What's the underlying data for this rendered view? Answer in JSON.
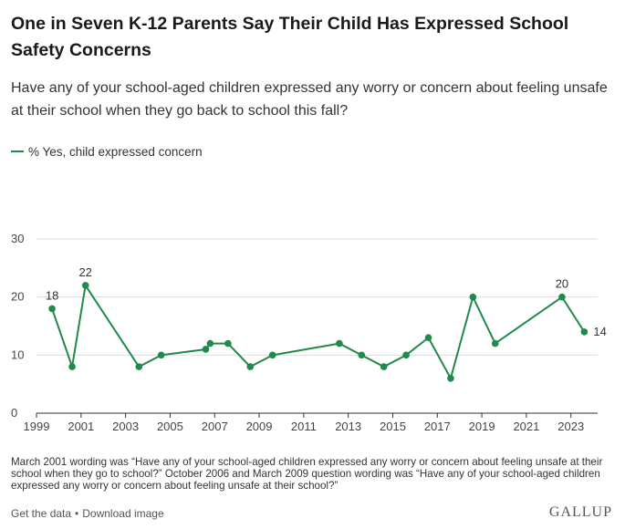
{
  "colors": {
    "series": "#1f8a4c",
    "grid": "#dddddd",
    "axis": "#333333"
  },
  "title": "One in Seven K-12 Parents Say Their Child Has Expressed School Safety Concerns",
  "subtitle": "Have any of your school-aged children expressed any worry or concern about feeling unsafe at their school when they go back to school this fall?",
  "legend": {
    "label": "% Yes, child expressed concern",
    "icon": "line-swatch"
  },
  "chart_data": {
    "type": "line",
    "title": "One in Seven K-12 Parents Say Their Child Has Expressed School Safety Concerns",
    "xlabel": "",
    "ylabel": "",
    "xlim": [
      1999,
      2024.2
    ],
    "ylim": [
      0,
      30
    ],
    "yticks": [
      0,
      10,
      20,
      30
    ],
    "xticks": [
      1999,
      2001,
      2003,
      2005,
      2007,
      2009,
      2011,
      2013,
      2015,
      2017,
      2019,
      2021,
      2023
    ],
    "grid": true,
    "legend_position": "top-left",
    "series": [
      {
        "name": "% Yes, child expressed concern",
        "x": [
          1999.7,
          2000.6,
          2001.2,
          2003.6,
          2004.6,
          2006.6,
          2006.8,
          2007.6,
          2008.6,
          2009.6,
          2012.6,
          2013.6,
          2014.6,
          2015.6,
          2016.6,
          2017.6,
          2018.6,
          2019.6,
          2022.6,
          2023.6
        ],
        "values": [
          18,
          8,
          22,
          8,
          10,
          11,
          12,
          12,
          8,
          10,
          12,
          10,
          8,
          10,
          13,
          6,
          20,
          12,
          20,
          14
        ]
      }
    ],
    "data_labels": [
      {
        "index": 0,
        "text": "18",
        "position": "above"
      },
      {
        "index": 2,
        "text": "22",
        "position": "above"
      },
      {
        "index": 18,
        "text": "20",
        "position": "above"
      },
      {
        "index": 19,
        "text": "14",
        "position": "right"
      }
    ]
  },
  "note": "March 2001 wording was “Have any of your school-aged children expressed any worry or concern about feeling unsafe at their school when they go to school?” October 2006 and March 2009 question wording was “Have any of your school-aged children expressed any worry or concern about feeling unsafe at their school?”",
  "footer": {
    "get_data": "Get the data",
    "separator": "•",
    "download": "Download image",
    "brand": "GALLUP"
  }
}
